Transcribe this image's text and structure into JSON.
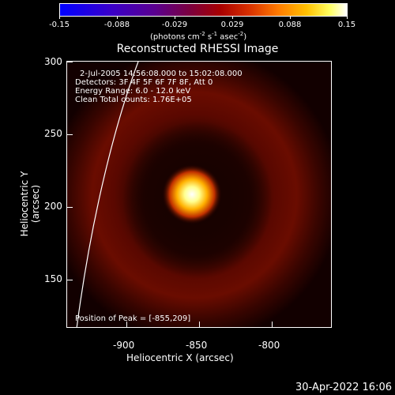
{
  "colorbar": {
    "ticks": [
      "-0.15",
      "-0.088",
      "-0.029",
      "0.029",
      "0.088",
      "0.15"
    ],
    "units": "(photons cm",
    "units_exp1": "-2",
    "units_mid": " s",
    "units_exp2": "-1",
    "units_mid2": " asec",
    "units_exp3": "-2",
    "units_end": ")"
  },
  "title": "Reconstructed RHESSI Image",
  "annotations": {
    "time": "2-Jul-2005 14:56:08.000 to 15:02:08.000",
    "detectors": "Detectors: 3F 4F 5F 6F 7F 8F, Att 0",
    "energy": "Energy Range: 6.0 - 12.0 keV",
    "clean": "Clean     Total counts: 1.76E+05",
    "peak": "Position of Peak = [-855,209]"
  },
  "axes": {
    "xlabel": "Heliocentric X (arcsec)",
    "ylabel": "Heliocentric Y (arcsec)",
    "xticks": [
      "-900",
      "-850",
      "-800"
    ],
    "yticks": [
      "150",
      "200",
      "250",
      "300"
    ]
  },
  "footer": {
    "timestamp": "30-Apr-2022 16:06"
  },
  "colors": {
    "source_core": "#ffffff",
    "source_glow": "#ffd000",
    "background_red": "#6a0a00"
  }
}
